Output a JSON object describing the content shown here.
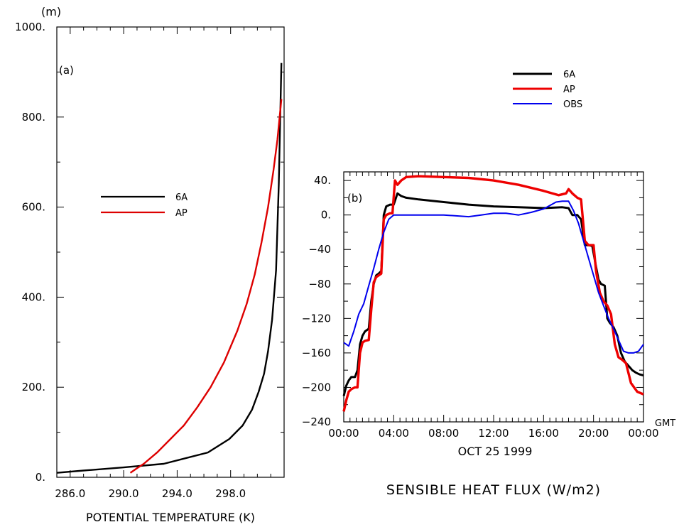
{
  "chart_data": [
    {
      "type": "line",
      "panel_label": "(a)",
      "xlabel": "POTENTIAL TEMPERATURE (K)",
      "ylabel": "(m)",
      "xlim": [
        285,
        302
      ],
      "ylim": [
        0,
        1000
      ],
      "xticks": [
        286,
        290,
        294,
        298
      ],
      "xtick_labels": [
        "286.0",
        "290.0",
        "294.0",
        "298.0"
      ],
      "yticks": [
        0,
        200,
        400,
        600,
        800,
        1000
      ],
      "ytick_labels": [
        "0.",
        "200.",
        "400.",
        "600.",
        "800.",
        "1000."
      ],
      "legend": {
        "location": "center-left"
      },
      "series": [
        {
          "name": "6A",
          "color": "#000000",
          "x": [
            285.0,
            287.0,
            290.0,
            293.0,
            296.3,
            297.9,
            298.9,
            299.6,
            300.1,
            300.5,
            300.8,
            301.1,
            301.4,
            301.6,
            301.8
          ],
          "y": [
            10,
            15,
            22,
            30,
            55,
            85,
            115,
            150,
            190,
            230,
            280,
            350,
            460,
            650,
            920
          ]
        },
        {
          "name": "AP",
          "color": "#dd0000",
          "x": [
            290.5,
            291.0,
            291.5,
            292.5,
            293.5,
            294.5,
            295.5,
            296.5,
            297.5,
            298.5,
            299.2,
            299.8,
            300.3,
            300.8,
            301.2,
            301.5,
            301.8
          ],
          "y": [
            10,
            20,
            30,
            55,
            85,
            115,
            155,
            200,
            255,
            325,
            385,
            450,
            520,
            600,
            680,
            750,
            840
          ]
        }
      ]
    },
    {
      "type": "line",
      "panel_label": "(b)",
      "title": "SENSIBLE HEAT FLUX (W/m2)",
      "xlabel": "OCT 25 1999",
      "x_unit_label": "GMT",
      "ylim": [
        -240,
        40
      ],
      "xlim": [
        0,
        24
      ],
      "xticks": [
        0,
        4,
        8,
        12,
        16,
        20,
        24
      ],
      "xtick_labels": [
        "00:00",
        "04:00",
        "08:00",
        "12:00",
        "16:00",
        "20:00",
        "00:00"
      ],
      "yticks": [
        40,
        0,
        -40,
        -80,
        -120,
        -160,
        -200,
        -240
      ],
      "ytick_labels": [
        "40.",
        "0.",
        "−40",
        "−80",
        "−120",
        "−160",
        "−200",
        "−240"
      ],
      "legend": {
        "location": "top (above plot)"
      },
      "series": [
        {
          "name": "6A",
          "color": "#000000",
          "x": [
            0.0,
            0.2,
            0.4,
            0.6,
            0.9,
            1.1,
            1.3,
            1.5,
            1.7,
            2.0,
            2.2,
            2.4,
            2.6,
            2.8,
            3.0,
            3.2,
            3.4,
            3.7,
            4.0,
            4.3,
            4.6,
            5.0,
            6.0,
            8.0,
            10.0,
            12.0,
            14.0,
            16.0,
            17.5,
            18.0,
            18.3,
            18.7,
            19.0,
            19.3,
            19.6,
            19.9,
            20.2,
            20.4,
            20.6,
            20.9,
            21.1,
            21.3,
            21.6,
            21.9,
            22.2,
            22.5,
            22.8,
            23.1,
            23.4,
            23.7,
            24.0
          ],
          "y": [
            -210,
            -198,
            -192,
            -188,
            -188,
            -180,
            -150,
            -140,
            -135,
            -132,
            -100,
            -80,
            -70,
            -68,
            -65,
            0,
            10,
            12,
            12,
            25,
            22,
            20,
            18,
            15,
            12,
            10,
            9,
            8,
            9,
            8,
            0,
            0,
            -5,
            -35,
            -35,
            -36,
            -60,
            -75,
            -80,
            -82,
            -120,
            -125,
            -130,
            -140,
            -160,
            -170,
            -175,
            -180,
            -183,
            -185,
            -186
          ]
        },
        {
          "name": "AP",
          "color": "#ee0000",
          "x": [
            0.0,
            0.2,
            0.4,
            0.6,
            0.9,
            1.1,
            1.3,
            1.5,
            1.7,
            2.0,
            2.2,
            2.4,
            2.6,
            2.8,
            3.0,
            3.2,
            3.4,
            3.7,
            3.9,
            4.1,
            4.3,
            4.6,
            5.0,
            6.0,
            8.0,
            10.0,
            12.0,
            14.0,
            16.0,
            17.2,
            17.8,
            18.0,
            18.3,
            18.7,
            19.0,
            19.3,
            19.6,
            19.8,
            20.0,
            20.2,
            20.5,
            20.8,
            21.1,
            21.4,
            21.7,
            22.0,
            22.3,
            22.6,
            23.0,
            23.5,
            24.0
          ],
          "y": [
            -228,
            -215,
            -205,
            -202,
            -200,
            -200,
            -160,
            -148,
            -146,
            -145,
            -110,
            -78,
            -72,
            -70,
            -68,
            -5,
            0,
            2,
            2,
            40,
            35,
            40,
            44,
            45,
            44,
            43,
            40,
            35,
            28,
            23,
            25,
            30,
            25,
            20,
            18,
            -30,
            -35,
            -35,
            -35,
            -65,
            -90,
            -100,
            -105,
            -115,
            -150,
            -165,
            -168,
            -172,
            -195,
            -205,
            -208
          ]
        },
        {
          "name": "OBS",
          "color": "#0000ee",
          "x": [
            0.0,
            0.4,
            0.8,
            1.2,
            1.6,
            2.0,
            2.4,
            2.8,
            3.2,
            3.6,
            4.0,
            5.0,
            6.0,
            8.0,
            10.0,
            11.0,
            12.0,
            13.0,
            14.0,
            15.0,
            16.0,
            17.0,
            17.5,
            18.0,
            18.4,
            18.8,
            19.2,
            19.6,
            20.0,
            20.4,
            20.8,
            21.2,
            21.6,
            22.0,
            22.4,
            22.8,
            23.2,
            23.6,
            24.0
          ],
          "y": [
            -148,
            -152,
            -135,
            -115,
            -103,
            -82,
            -62,
            -40,
            -20,
            -5,
            0,
            0,
            0,
            0,
            -2,
            0,
            2,
            2,
            0,
            3,
            7,
            15,
            16,
            16,
            5,
            -10,
            -30,
            -50,
            -70,
            -90,
            -105,
            -120,
            -132,
            -145,
            -158,
            -160,
            -160,
            -158,
            -150
          ]
        }
      ]
    }
  ]
}
